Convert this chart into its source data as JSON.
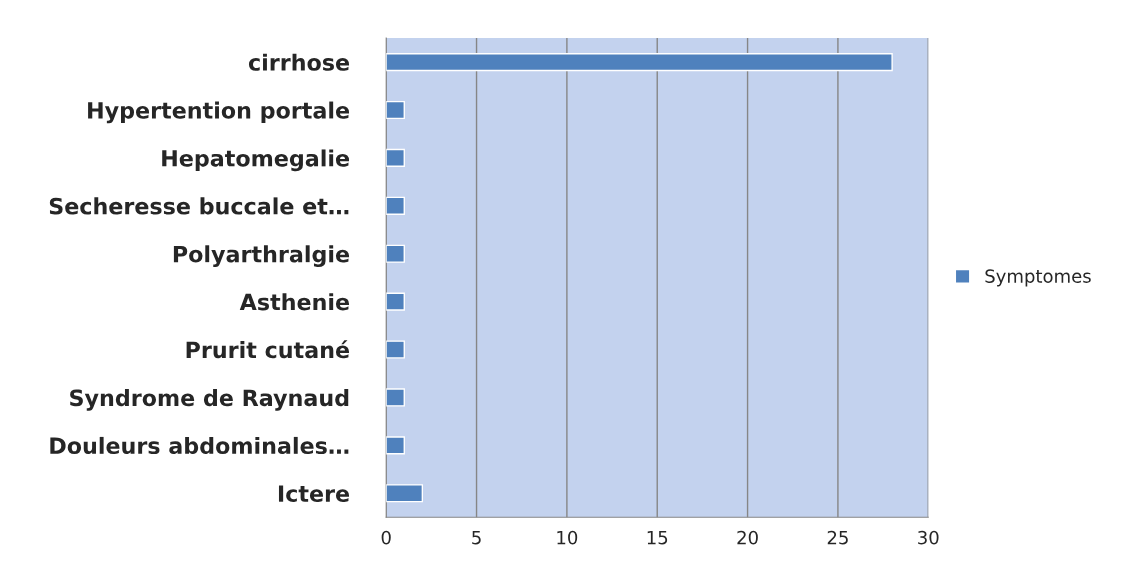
{
  "chart_data": {
    "type": "bar",
    "orientation": "horizontal",
    "categories": [
      "cirrhose",
      "Hypertention portale",
      "Hepatomegalie",
      "Secheresse buccale et…",
      "Polyarthralgie",
      "Asthenie",
      "Prurit cutané",
      "Syndrome de Raynaud",
      "Douleurs abdominales…",
      "Ictere"
    ],
    "series": [
      {
        "name": "Symptomes",
        "color": "#4f81bd",
        "values": [
          28,
          1,
          1,
          1,
          1,
          1,
          1,
          1,
          1,
          2
        ]
      }
    ],
    "xlim": [
      0,
      30
    ],
    "xticks": [
      0,
      5,
      10,
      15,
      20,
      25,
      30
    ],
    "grid": "x",
    "legend": "right"
  }
}
